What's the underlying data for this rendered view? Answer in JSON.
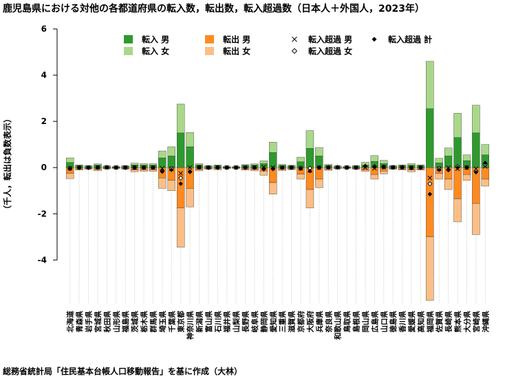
{
  "title": "鹿児島県における対他の各都道府県の転入数，転出数，転入超過数（日本人＋外国人，2023年）",
  "caption": "総務省統計局「住民基本台帳人口移動報告」を基に作成（大林）",
  "colors": {
    "in_male": "#2e9a2e",
    "in_female": "#a9d88a",
    "out_male": "#ff8a1f",
    "out_female": "#fbbf86",
    "zero_line": "#bbbbbb",
    "guide": "#bbbbbb",
    "marker": "#000000"
  },
  "chart_data": {
    "type": "bar",
    "stacked": true,
    "ylabel": "（千人，転出は負数表示）",
    "ylim": [
      -5.75,
      6
    ],
    "yticks": [
      -4,
      -2,
      0,
      2,
      4,
      6
    ],
    "categories": [
      "北海道",
      "青森県",
      "岩手県",
      "宮城県",
      "秋田県",
      "山形県",
      "福島県",
      "茨城県",
      "栃木県",
      "群馬県",
      "埼玉県",
      "千葉県",
      "東京都",
      "神奈川県",
      "新潟県",
      "富山県",
      "石川県",
      "福井県",
      "山梨県",
      "長野県",
      "岐阜県",
      "静岡県",
      "愛知県",
      "三重県",
      "滋賀県",
      "京都府",
      "大阪府",
      "兵庫県",
      "奈良県",
      "和歌山県",
      "鳥取県",
      "島根県",
      "岡山県",
      "広島県",
      "山口県",
      "徳島県",
      "香川県",
      "愛媛県",
      "高知県",
      "福岡県",
      "佐賀県",
      "長崎県",
      "熊本県",
      "大分県",
      "宮崎県",
      "沖縄県"
    ],
    "series": [
      {
        "name": "転入 男",
        "values": [
          0.22,
          0.07,
          0.05,
          0.1,
          0.04,
          0.03,
          0.05,
          0.11,
          0.1,
          0.1,
          0.42,
          0.5,
          1.5,
          0.9,
          0.1,
          0.05,
          0.07,
          0.03,
          0.03,
          0.08,
          0.1,
          0.17,
          0.65,
          0.08,
          0.06,
          0.25,
          0.83,
          0.5,
          0.08,
          0.04,
          0.03,
          0.05,
          0.1,
          0.27,
          0.17,
          0.05,
          0.07,
          0.1,
          0.07,
          2.55,
          0.2,
          0.5,
          1.3,
          0.3,
          1.5,
          0.55
        ]
      },
      {
        "name": "転入 女",
        "values": [
          0.2,
          0.05,
          0.03,
          0.06,
          0.03,
          0.02,
          0.03,
          0.08,
          0.07,
          0.07,
          0.3,
          0.4,
          1.25,
          0.62,
          0.07,
          0.03,
          0.04,
          0.02,
          0.02,
          0.05,
          0.06,
          0.12,
          0.45,
          0.06,
          0.04,
          0.2,
          0.77,
          0.37,
          0.06,
          0.03,
          0.02,
          0.03,
          0.13,
          0.25,
          0.14,
          0.04,
          0.05,
          0.07,
          0.05,
          2.05,
          0.2,
          0.35,
          1.05,
          0.25,
          1.2,
          0.45
        ]
      },
      {
        "name": "転出 男",
        "values": [
          -0.25,
          -0.06,
          -0.04,
          -0.08,
          -0.03,
          -0.02,
          -0.04,
          -0.1,
          -0.09,
          -0.09,
          -0.45,
          -0.55,
          -1.75,
          -0.9,
          -0.08,
          -0.04,
          -0.05,
          -0.02,
          -0.02,
          -0.06,
          -0.08,
          -0.15,
          -0.65,
          -0.07,
          -0.05,
          -0.28,
          -0.95,
          -0.5,
          -0.07,
          -0.03,
          -0.02,
          -0.04,
          -0.1,
          -0.3,
          -0.15,
          -0.04,
          -0.06,
          -0.1,
          -0.06,
          -3.0,
          -0.25,
          -0.5,
          -1.35,
          -0.3,
          -1.55,
          -0.5
        ]
      },
      {
        "name": "転出 女",
        "values": [
          -0.23,
          -0.05,
          -0.03,
          -0.06,
          -0.02,
          -0.02,
          -0.03,
          -0.08,
          -0.07,
          -0.07,
          -0.45,
          -0.45,
          -1.7,
          -0.8,
          -0.06,
          -0.03,
          -0.04,
          -0.02,
          -0.02,
          -0.05,
          -0.06,
          -0.18,
          -0.5,
          -0.06,
          -0.04,
          -0.22,
          -0.8,
          -0.37,
          -0.05,
          -0.02,
          -0.02,
          -0.03,
          -0.07,
          -0.2,
          -0.12,
          -0.03,
          -0.04,
          -0.08,
          -0.05,
          -2.75,
          -0.25,
          -0.45,
          -1.0,
          -0.25,
          -1.35,
          -0.3
        ]
      }
    ],
    "net_series": [
      {
        "name": "転入超過 男",
        "marker": "x",
        "values": [
          -0.03,
          0.01,
          0.01,
          0.02,
          0.01,
          0.01,
          0.01,
          0.01,
          0.01,
          0.01,
          -0.03,
          -0.05,
          -0.25,
          0.0,
          0.02,
          0.01,
          0.02,
          0.01,
          0.01,
          0.02,
          0.02,
          0.02,
          0.0,
          0.01,
          0.01,
          -0.03,
          -0.12,
          0.0,
          0.01,
          0.01,
          0.01,
          0.01,
          0.0,
          -0.03,
          0.02,
          0.01,
          0.01,
          0.0,
          0.01,
          -0.45,
          -0.05,
          0.0,
          -0.05,
          0.0,
          -0.05,
          0.05
        ]
      },
      {
        "name": "転入超過 女",
        "marker": "diamond-open",
        "values": [
          -0.03,
          0.0,
          0.0,
          0.0,
          0.01,
          0.0,
          0.0,
          0.0,
          0.0,
          0.0,
          -0.15,
          -0.05,
          -0.45,
          -0.18,
          0.01,
          0.0,
          0.0,
          0.0,
          0.0,
          0.0,
          0.0,
          -0.06,
          -0.05,
          0.0,
          0.0,
          -0.02,
          -0.03,
          0.0,
          0.01,
          0.01,
          0.0,
          0.0,
          0.06,
          0.05,
          0.02,
          0.01,
          0.01,
          -0.01,
          0.0,
          -0.7,
          -0.05,
          -0.1,
          0.05,
          0.0,
          -0.15,
          0.15
        ]
      },
      {
        "name": "転入超過 計",
        "marker": "diamond-filled",
        "values": [
          -0.06,
          0.01,
          0.01,
          0.02,
          0.02,
          0.01,
          0.01,
          0.01,
          0.01,
          0.01,
          -0.18,
          -0.1,
          -0.7,
          -0.18,
          0.03,
          0.01,
          0.02,
          0.01,
          0.01,
          0.02,
          0.02,
          -0.04,
          -0.05,
          0.01,
          0.01,
          -0.05,
          -0.15,
          0.0,
          0.02,
          0.02,
          0.01,
          0.01,
          0.06,
          0.02,
          0.04,
          0.02,
          0.02,
          -0.01,
          0.01,
          -1.15,
          -0.1,
          -0.1,
          0.0,
          0.0,
          -0.2,
          0.2
        ]
      }
    ],
    "legend": [
      {
        "label": "転入 男",
        "key": "in_male",
        "type": "box"
      },
      {
        "label": "転入 女",
        "key": "in_female",
        "type": "box"
      },
      {
        "label": "転出 男",
        "key": "out_male",
        "type": "box"
      },
      {
        "label": "転出 女",
        "key": "out_female",
        "type": "box"
      },
      {
        "label": "転入超過 男",
        "type": "x"
      },
      {
        "label": "転入超過 女",
        "type": "diamond-open"
      },
      {
        "label": "転入超過 計",
        "type": "diamond-filled"
      }
    ],
    "legend_position": "top"
  }
}
